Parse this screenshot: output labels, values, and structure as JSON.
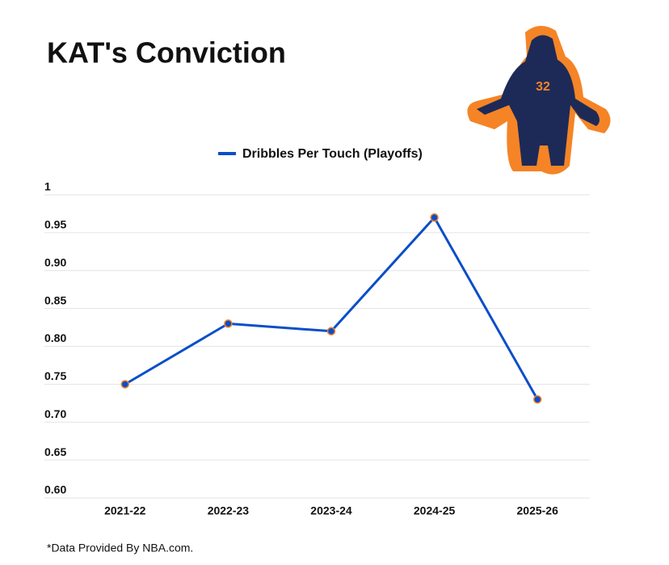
{
  "chart_data": {
    "type": "line",
    "title": "KAT's Conviction",
    "categories": [
      "2021-22",
      "2022-23",
      "2023-24",
      "2024-25",
      "2025-26"
    ],
    "series": [
      {
        "name": "Dribbles Per Touch (Playoffs)",
        "color": "#0a4ec9",
        "marker_color": "#f58426",
        "values": [
          0.75,
          0.83,
          0.82,
          0.97,
          0.73
        ]
      }
    ],
    "ylim": [
      0.6,
      1
    ],
    "yticks": [
      1,
      0.95,
      {
        "value": 0.9,
        "label": "0.90"
      },
      0.85,
      {
        "value": 0.8,
        "label": "0.80"
      },
      0.75,
      {
        "value": 0.7,
        "label": "0.70"
      },
      0.65,
      {
        "value": 0.6,
        "label": "0.60"
      }
    ],
    "grid": true,
    "legend": "top",
    "footnote": "*Data Provided By NBA.com."
  }
}
